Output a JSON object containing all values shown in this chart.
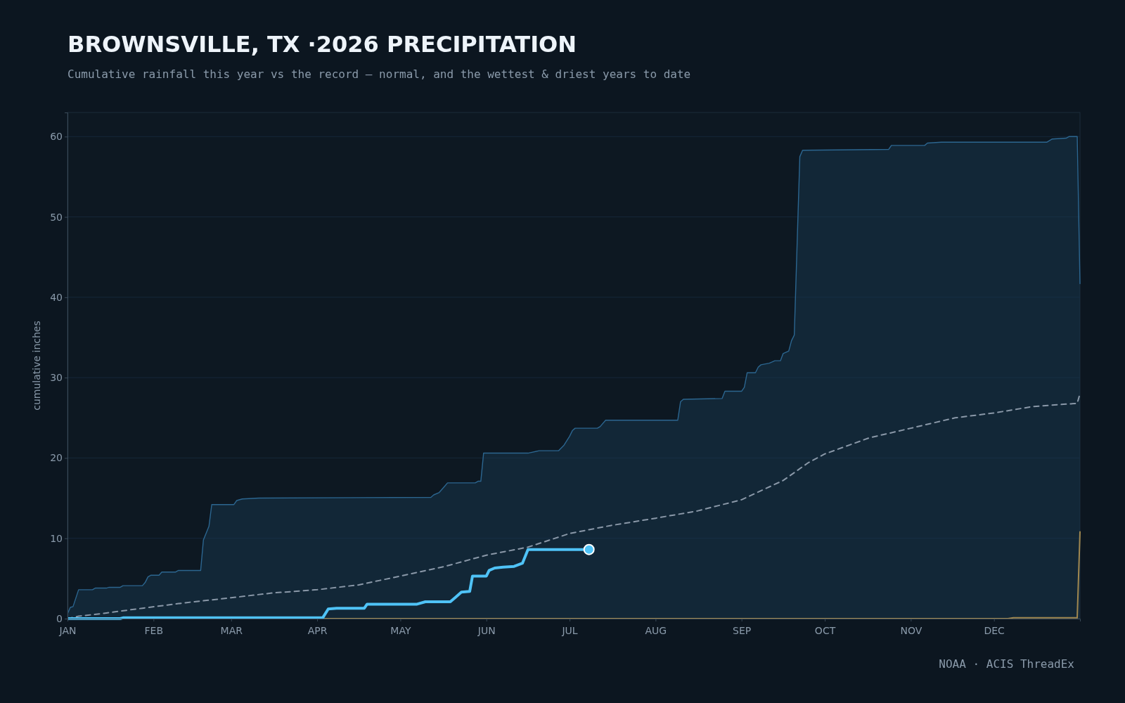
{
  "chart_data": {
    "type": "line",
    "title": "BROWNSVILLE, TX ·2026 PRECIPITATION",
    "subtitle": "Cumulative rainfall this year vs the record — normal, and the wettest & driest years to date",
    "ylabel": "cumulative inches",
    "annotations": [
      "NOAA · ACIS ThreadEx"
    ],
    "xlim": [
      "2026-01-01",
      "2027-01-01"
    ],
    "ylim": [
      0,
      63
    ],
    "xticks": [
      {
        "value": "2026-01-01",
        "label": "JAN"
      },
      {
        "value": "2026-02-01",
        "label": "FEB"
      },
      {
        "value": "2026-03-01",
        "label": "MAR"
      },
      {
        "value": "2026-04-01",
        "label": "APR"
      },
      {
        "value": "2026-05-01",
        "label": "MAY"
      },
      {
        "value": "2026-06-01",
        "label": "JUN"
      },
      {
        "value": "2026-07-01",
        "label": "JUL"
      },
      {
        "value": "2026-08-01",
        "label": "AUG"
      },
      {
        "value": "2026-09-01",
        "label": "SEP"
      },
      {
        "value": "2026-10-01",
        "label": "OCT"
      },
      {
        "value": "2026-11-01",
        "label": "NOV"
      },
      {
        "value": "2026-12-01",
        "label": "DEC"
      }
    ],
    "yticks": [
      0,
      10,
      20,
      30,
      40,
      50,
      60
    ],
    "grid": "y",
    "series": [
      {
        "type": "area",
        "color": "#2c6690",
        "x": [
          "2026-01-01",
          "2026-01-02",
          "2026-01-03",
          "2026-01-05",
          "2026-01-10",
          "2026-01-11",
          "2026-01-15",
          "2026-01-16",
          "2026-01-20",
          "2026-01-21",
          "2026-01-28",
          "2026-01-29",
          "2026-01-30",
          "2026-01-31",
          "2026-02-03",
          "2026-02-04",
          "2026-02-09",
          "2026-02-10",
          "2026-02-18",
          "2026-02-19",
          "2026-02-21",
          "2026-02-22",
          "2026-03-02",
          "2026-03-03",
          "2026-03-05",
          "2026-03-11",
          "2026-05-12",
          "2026-05-13",
          "2026-05-15",
          "2026-05-17",
          "2026-05-18",
          "2026-05-28",
          "2026-05-29",
          "2026-05-30",
          "2026-05-31",
          "2026-06-16",
          "2026-06-20",
          "2026-06-27",
          "2026-06-29",
          "2026-07-01",
          "2026-07-02",
          "2026-07-03",
          "2026-07-11",
          "2026-07-12",
          "2026-07-14",
          "2026-08-09",
          "2026-08-10",
          "2026-08-11",
          "2026-08-25",
          "2026-08-26",
          "2026-09-01",
          "2026-09-02",
          "2026-09-03",
          "2026-09-06",
          "2026-09-07",
          "2026-09-08",
          "2026-09-11",
          "2026-09-13",
          "2026-09-15",
          "2026-09-16",
          "2026-09-18",
          "2026-09-19",
          "2026-09-20",
          "2026-09-22",
          "2026-09-23",
          "2026-10-24",
          "2026-10-25",
          "2026-11-06",
          "2026-11-07",
          "2026-11-12",
          "2026-12-20",
          "2026-12-22",
          "2026-12-27",
          "2026-12-28",
          "2026-12-31",
          "2027-01-01"
        ],
        "values": [
          0.6,
          1.4,
          1.5,
          3.6,
          3.6,
          3.8,
          3.8,
          3.9,
          3.9,
          4.1,
          4.1,
          4.5,
          5.2,
          5.4,
          5.4,
          5.8,
          5.8,
          6.0,
          6.0,
          9.8,
          11.5,
          14.2,
          14.2,
          14.7,
          14.9,
          15.0,
          15.1,
          15.4,
          15.7,
          16.5,
          16.9,
          16.9,
          17.1,
          17.1,
          20.6,
          20.6,
          20.9,
          20.9,
          21.6,
          22.7,
          23.4,
          23.7,
          23.7,
          23.9,
          24.7,
          24.7,
          27.0,
          27.3,
          27.4,
          28.3,
          28.3,
          28.8,
          30.6,
          30.6,
          31.3,
          31.6,
          31.8,
          32.1,
          32.1,
          33.0,
          33.3,
          34.6,
          35.3,
          57.5,
          58.3,
          58.4,
          58.9,
          58.9,
          59.2,
          59.3,
          59.3,
          59.7,
          59.8,
          60.0,
          60.0,
          41.7
        ]
      },
      {
        "color": "#a08850",
        "x": [
          "2026-01-01",
          "2026-12-06",
          "2026-12-08",
          "2026-12-31",
          "2027-01-01"
        ],
        "values": [
          0,
          0,
          0.1,
          0.1,
          10.8
        ]
      },
      {
        "color": "#8a98a8",
        "line_style": "dashed",
        "x": [
          "2026-01-01",
          "2026-01-05",
          "2026-01-15",
          "2026-01-28",
          "2026-02-13",
          "2026-03-01",
          "2026-03-16",
          "2026-04-01",
          "2026-04-16",
          "2026-05-01",
          "2026-05-17",
          "2026-06-01",
          "2026-06-16",
          "2026-07-01",
          "2026-07-16",
          "2026-08-01",
          "2026-08-16",
          "2026-09-01",
          "2026-09-16",
          "2026-09-25",
          "2026-10-01",
          "2026-10-17",
          "2026-11-01",
          "2026-11-17",
          "2026-12-01",
          "2026-12-15",
          "2026-12-31",
          "2027-01-01"
        ],
        "values": [
          0,
          0.3,
          0.7,
          1.3,
          2.0,
          2.6,
          3.2,
          3.6,
          4.2,
          5.3,
          6.5,
          7.9,
          8.9,
          10.6,
          11.6,
          12.5,
          13.4,
          14.8,
          17.2,
          19.4,
          20.5,
          22.5,
          23.7,
          25.0,
          25.6,
          26.4,
          26.8,
          28.0
        ]
      },
      {
        "color": "#4fc3f7",
        "x": [
          "2026-01-01",
          "2026-01-20",
          "2026-01-21",
          "2026-04-03",
          "2026-04-05",
          "2026-04-08",
          "2026-04-18",
          "2026-04-19",
          "2026-05-07",
          "2026-05-10",
          "2026-05-19",
          "2026-05-21",
          "2026-05-23",
          "2026-05-26",
          "2026-05-27",
          "2026-06-01",
          "2026-06-02",
          "2026-06-04",
          "2026-06-07",
          "2026-06-11",
          "2026-06-14",
          "2026-06-16",
          "2026-07-08"
        ],
        "values": [
          0,
          0,
          0.1,
          0.1,
          1.2,
          1.3,
          1.3,
          1.8,
          1.8,
          2.1,
          2.1,
          2.7,
          3.3,
          3.4,
          5.3,
          5.3,
          6.0,
          6.3,
          6.4,
          6.5,
          6.9,
          8.6,
          8.6
        ]
      }
    ]
  }
}
